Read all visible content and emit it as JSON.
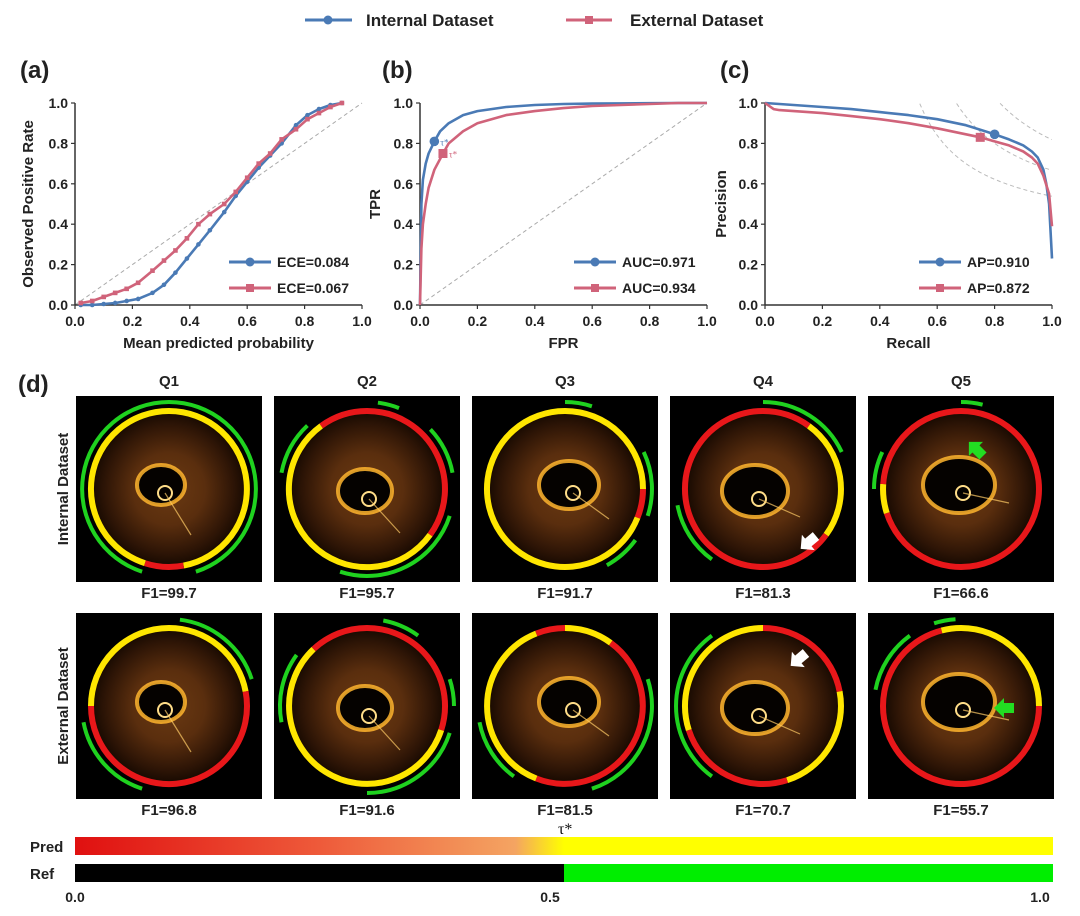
{
  "legend": {
    "internal": {
      "label": "Internal Dataset",
      "color": "#4a7ab5"
    },
    "external": {
      "label": "External Dataset",
      "color": "#d0637a"
    }
  },
  "chart_data": [
    {
      "panel_label": "(a)",
      "type": "line",
      "xlabel": "Mean predicted probability",
      "ylabel": "Observed Positive Rate",
      "xlim": [
        0,
        1
      ],
      "ylim": [
        0,
        1
      ],
      "x_ticks": [
        "0.0",
        "0.2",
        "0.4",
        "0.6",
        "0.8",
        "1.0"
      ],
      "y_ticks": [
        "0.0",
        "0.2",
        "0.4",
        "0.6",
        "0.8",
        "1.0"
      ],
      "diagonal_reference": true,
      "legend_position": "bottom-right",
      "series": [
        {
          "name": "ECE=0.084",
          "dataset": "internal",
          "x": [
            0.02,
            0.06,
            0.1,
            0.14,
            0.18,
            0.22,
            0.27,
            0.31,
            0.35,
            0.39,
            0.43,
            0.47,
            0.52,
            0.56,
            0.6,
            0.64,
            0.68,
            0.72,
            0.77,
            0.81,
            0.85,
            0.89,
            0.93
          ],
          "y": [
            0.0,
            0.0,
            0.005,
            0.01,
            0.02,
            0.03,
            0.06,
            0.1,
            0.16,
            0.23,
            0.3,
            0.37,
            0.46,
            0.54,
            0.61,
            0.68,
            0.74,
            0.8,
            0.89,
            0.94,
            0.97,
            0.99,
            1.0
          ]
        },
        {
          "name": "ECE=0.067",
          "dataset": "external",
          "x": [
            0.02,
            0.06,
            0.1,
            0.14,
            0.18,
            0.22,
            0.27,
            0.31,
            0.35,
            0.39,
            0.43,
            0.47,
            0.52,
            0.56,
            0.6,
            0.64,
            0.68,
            0.72,
            0.77,
            0.81,
            0.85,
            0.89,
            0.93
          ],
          "y": [
            0.01,
            0.02,
            0.04,
            0.06,
            0.08,
            0.11,
            0.17,
            0.22,
            0.27,
            0.33,
            0.4,
            0.45,
            0.5,
            0.56,
            0.63,
            0.7,
            0.75,
            0.82,
            0.87,
            0.92,
            0.95,
            0.98,
            1.0
          ]
        }
      ]
    },
    {
      "panel_label": "(b)",
      "type": "line",
      "xlabel": "FPR",
      "ylabel": "TPR",
      "xlim": [
        0,
        1
      ],
      "ylim": [
        0,
        1
      ],
      "x_ticks": [
        "0.0",
        "0.2",
        "0.4",
        "0.6",
        "0.8",
        "1.0"
      ],
      "y_ticks": [
        "0.0",
        "0.2",
        "0.4",
        "0.6",
        "0.8",
        "1.0"
      ],
      "diagonal_reference": true,
      "legend_position": "bottom-right",
      "operating_point_label": "τ*",
      "series": [
        {
          "name": "AUC=0.971",
          "dataset": "internal",
          "x": [
            0,
            0.005,
            0.01,
            0.02,
            0.03,
            0.05,
            0.07,
            0.1,
            0.15,
            0.2,
            0.3,
            0.4,
            0.5,
            0.6,
            0.7,
            0.8,
            0.9,
            1.0
          ],
          "y": [
            0,
            0.5,
            0.62,
            0.7,
            0.75,
            0.81,
            0.86,
            0.9,
            0.94,
            0.96,
            0.98,
            0.99,
            0.995,
            0.997,
            0.998,
            0.999,
            1.0,
            1.0
          ],
          "operating_point": [
            0.05,
            0.81
          ]
        },
        {
          "name": "AUC=0.934",
          "dataset": "external",
          "x": [
            0,
            0.005,
            0.01,
            0.02,
            0.03,
            0.05,
            0.08,
            0.1,
            0.15,
            0.2,
            0.3,
            0.4,
            0.5,
            0.6,
            0.7,
            0.8,
            0.9,
            1.0
          ],
          "y": [
            0,
            0.28,
            0.4,
            0.5,
            0.58,
            0.67,
            0.75,
            0.8,
            0.86,
            0.9,
            0.94,
            0.96,
            0.975,
            0.985,
            0.99,
            0.995,
            1.0,
            1.0
          ],
          "operating_point": [
            0.08,
            0.75
          ]
        }
      ]
    },
    {
      "panel_label": "(c)",
      "type": "line",
      "xlabel": "Recall",
      "ylabel": "Precision",
      "xlim": [
        0,
        1
      ],
      "ylim": [
        0,
        1
      ],
      "x_ticks": [
        "0.0",
        "0.2",
        "0.4",
        "0.6",
        "0.8",
        "1.0"
      ],
      "y_ticks": [
        "0.0",
        "0.2",
        "0.4",
        "0.6",
        "0.8",
        "1.0"
      ],
      "iso_f1_curves": [
        0.7,
        0.8,
        0.9
      ],
      "legend_position": "bottom-right",
      "series": [
        {
          "name": "AP=0.910",
          "dataset": "internal",
          "x": [
            0,
            0.05,
            0.1,
            0.2,
            0.3,
            0.4,
            0.5,
            0.6,
            0.7,
            0.8,
            0.85,
            0.9,
            0.93,
            0.95,
            0.97,
            0.98,
            0.99,
            1.0
          ],
          "y": [
            1.0,
            0.995,
            0.99,
            0.98,
            0.97,
            0.955,
            0.94,
            0.92,
            0.89,
            0.845,
            0.82,
            0.79,
            0.76,
            0.73,
            0.67,
            0.6,
            0.5,
            0.23
          ],
          "operating_point": [
            0.8,
            0.845
          ]
        },
        {
          "name": "AP=0.872",
          "dataset": "external",
          "x": [
            0,
            0.03,
            0.05,
            0.1,
            0.2,
            0.3,
            0.4,
            0.5,
            0.6,
            0.7,
            0.75,
            0.8,
            0.85,
            0.9,
            0.93,
            0.95,
            0.97,
            0.99,
            1.0
          ],
          "y": [
            1.0,
            0.97,
            0.965,
            0.96,
            0.95,
            0.935,
            0.92,
            0.9,
            0.875,
            0.845,
            0.83,
            0.81,
            0.79,
            0.76,
            0.73,
            0.7,
            0.64,
            0.55,
            0.39
          ],
          "operating_point": [
            0.75,
            0.83
          ]
        }
      ]
    }
  ],
  "panel_d": {
    "label": "(d)",
    "columns": [
      "Q1",
      "Q2",
      "Q3",
      "Q4",
      "Q5"
    ],
    "rows": [
      {
        "label": "Internal Dataset",
        "f1": [
          "F1=99.7",
          "F1=95.7",
          "F1=91.7",
          "F1=81.3",
          "F1=66.6"
        ]
      },
      {
        "label": "External Dataset",
        "f1": [
          "F1=96.8",
          "F1=91.6",
          "F1=81.5",
          "F1=70.7",
          "F1=55.7"
        ]
      }
    ],
    "arrows": [
      {
        "row": 0,
        "col": 3,
        "color": "white"
      },
      {
        "row": 0,
        "col": 4,
        "color": "green"
      },
      {
        "row": 1,
        "col": 3,
        "color": "white"
      },
      {
        "row": 1,
        "col": 4,
        "color": "green"
      }
    ]
  },
  "colorbar": {
    "pred_label": "Pred",
    "ref_label": "Ref",
    "tau_label": "τ*",
    "ticks": [
      "0.0",
      "0.5",
      "1.0"
    ],
    "ref_threshold": 0.5,
    "colors": {
      "red": "#e01010",
      "orange": "#f4a462",
      "yellow": "#ffff00",
      "black": "#000000",
      "green": "#00ee00"
    }
  }
}
